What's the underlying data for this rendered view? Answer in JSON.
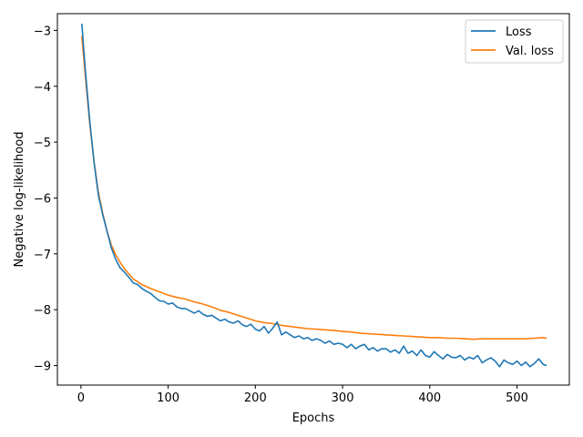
{
  "chart_data": {
    "type": "line",
    "title": "",
    "xlabel": "Epochs",
    "ylabel": "Negative log-likelihood",
    "xlim": [
      -27,
      560
    ],
    "ylim": [
      -9.35,
      -2.7
    ],
    "xticks": [
      0,
      100,
      200,
      300,
      400,
      500
    ],
    "yticks": [
      -9,
      -8,
      -7,
      -6,
      -5,
      -4,
      -3
    ],
    "xtick_labels": [
      "0",
      "100",
      "200",
      "300",
      "400",
      "500"
    ],
    "ytick_labels": [
      "−9",
      "−8",
      "−7",
      "−6",
      "−5",
      "−4",
      "−3"
    ],
    "grid": false,
    "legend_position": "top-right",
    "series": [
      {
        "name": "Loss",
        "color": "#1f77b4",
        "x": [
          1,
          5,
          10,
          15,
          20,
          25,
          30,
          35,
          40,
          45,
          50,
          55,
          60,
          65,
          70,
          75,
          80,
          85,
          90,
          95,
          100,
          105,
          110,
          115,
          120,
          125,
          130,
          135,
          140,
          145,
          150,
          155,
          160,
          165,
          170,
          175,
          180,
          185,
          190,
          195,
          200,
          205,
          210,
          215,
          220,
          225,
          230,
          235,
          240,
          245,
          250,
          255,
          260,
          265,
          270,
          275,
          280,
          285,
          290,
          295,
          300,
          305,
          310,
          315,
          320,
          325,
          330,
          335,
          340,
          345,
          350,
          355,
          360,
          365,
          370,
          375,
          380,
          385,
          390,
          395,
          400,
          405,
          410,
          415,
          420,
          425,
          430,
          435,
          440,
          445,
          450,
          455,
          460,
          465,
          470,
          475,
          480,
          485,
          490,
          495,
          500,
          505,
          510,
          515,
          520,
          525,
          530,
          534
        ],
        "y": [
          -2.88,
          -3.7,
          -4.6,
          -5.35,
          -5.95,
          -6.3,
          -6.6,
          -6.9,
          -7.1,
          -7.25,
          -7.33,
          -7.42,
          -7.52,
          -7.55,
          -7.62,
          -7.67,
          -7.71,
          -7.78,
          -7.84,
          -7.85,
          -7.9,
          -7.88,
          -7.95,
          -7.98,
          -7.98,
          -8.02,
          -8.06,
          -8.02,
          -8.08,
          -8.12,
          -8.1,
          -8.15,
          -8.2,
          -8.17,
          -8.22,
          -8.24,
          -8.2,
          -8.27,
          -8.3,
          -8.26,
          -8.35,
          -8.38,
          -8.3,
          -8.42,
          -8.33,
          -8.22,
          -8.45,
          -8.4,
          -8.45,
          -8.5,
          -8.47,
          -8.52,
          -8.5,
          -8.55,
          -8.52,
          -8.55,
          -8.6,
          -8.56,
          -8.62,
          -8.6,
          -8.62,
          -8.68,
          -8.62,
          -8.7,
          -8.65,
          -8.62,
          -8.72,
          -8.68,
          -8.74,
          -8.7,
          -8.7,
          -8.76,
          -8.72,
          -8.78,
          -8.65,
          -8.78,
          -8.74,
          -8.82,
          -8.72,
          -8.82,
          -8.85,
          -8.75,
          -8.82,
          -8.88,
          -8.8,
          -8.85,
          -8.86,
          -8.82,
          -8.9,
          -8.85,
          -8.88,
          -8.82,
          -8.95,
          -8.9,
          -8.86,
          -8.92,
          -9.02,
          -8.9,
          -8.95,
          -8.98,
          -8.92,
          -9.0,
          -8.94,
          -9.02,
          -8.96,
          -8.88,
          -8.98,
          -9.0
        ]
      },
      {
        "name": "Val. loss",
        "color": "#ff7f0e",
        "x": [
          1,
          5,
          10,
          15,
          20,
          25,
          30,
          35,
          40,
          45,
          50,
          60,
          70,
          80,
          90,
          100,
          110,
          120,
          130,
          140,
          150,
          160,
          170,
          180,
          190,
          200,
          210,
          220,
          230,
          240,
          250,
          260,
          270,
          280,
          290,
          300,
          310,
          320,
          330,
          340,
          350,
          360,
          370,
          380,
          390,
          400,
          410,
          420,
          430,
          440,
          450,
          460,
          470,
          480,
          490,
          500,
          510,
          520,
          530,
          534
        ],
        "y": [
          -3.1,
          -3.8,
          -4.65,
          -5.35,
          -5.9,
          -6.28,
          -6.6,
          -6.85,
          -7.02,
          -7.15,
          -7.27,
          -7.45,
          -7.55,
          -7.62,
          -7.68,
          -7.74,
          -7.78,
          -7.81,
          -7.86,
          -7.9,
          -7.95,
          -8.01,
          -8.05,
          -8.1,
          -8.15,
          -8.2,
          -8.23,
          -8.25,
          -8.28,
          -8.3,
          -8.32,
          -8.34,
          -8.35,
          -8.36,
          -8.37,
          -8.39,
          -8.4,
          -8.42,
          -8.43,
          -8.44,
          -8.45,
          -8.46,
          -8.47,
          -8.48,
          -8.49,
          -8.5,
          -8.5,
          -8.51,
          -8.51,
          -8.52,
          -8.53,
          -8.52,
          -8.52,
          -8.52,
          -8.52,
          -8.52,
          -8.52,
          -8.51,
          -8.5,
          -8.51
        ]
      }
    ]
  }
}
